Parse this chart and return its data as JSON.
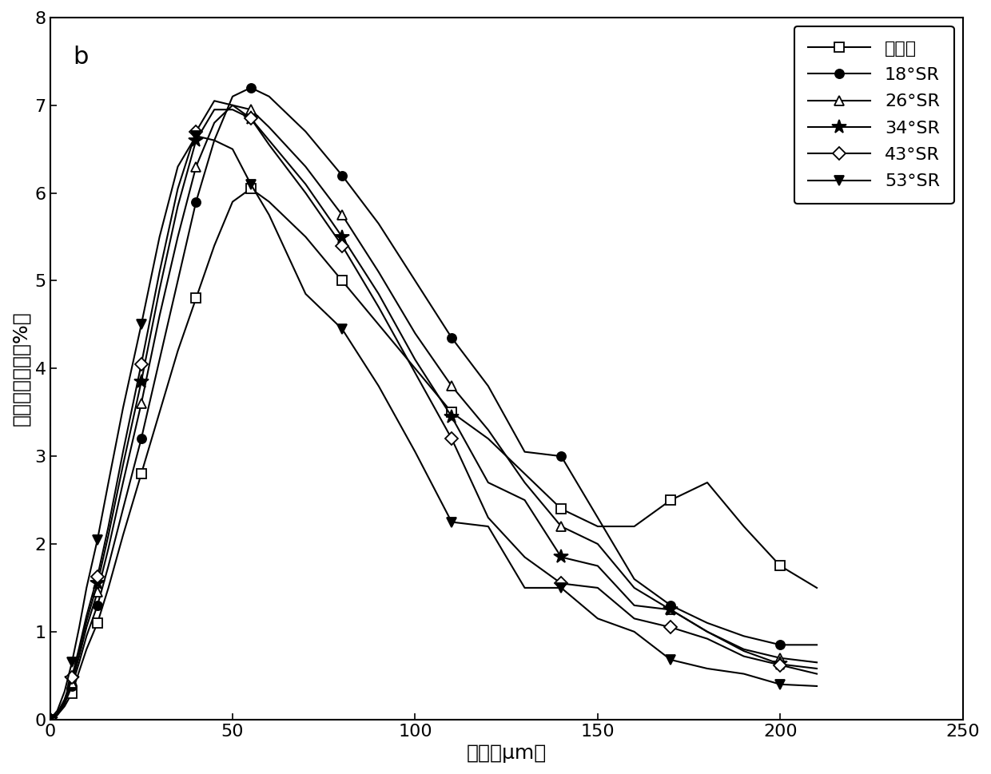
{
  "title_label": "b",
  "xlabel": "粒径（μm）",
  "ylabel": "区间百分含量（%）",
  "xlim": [
    0,
    250
  ],
  "ylim": [
    0,
    8
  ],
  "xticks": [
    0,
    50,
    100,
    150,
    200,
    250
  ],
  "yticks": [
    0,
    1,
    2,
    3,
    4,
    5,
    6,
    7,
    8
  ],
  "series": [
    {
      "label": "未打浆",
      "marker": "s",
      "marker_fill": "white",
      "marker_edge": "black",
      "color": "black",
      "x": [
        0,
        2,
        4,
        6,
        8,
        10,
        13,
        16,
        20,
        25,
        30,
        35,
        40,
        45,
        50,
        55,
        60,
        70,
        80,
        90,
        100,
        110,
        120,
        130,
        140,
        150,
        160,
        170,
        180,
        190,
        200,
        210
      ],
      "y": [
        0.0,
        0.05,
        0.15,
        0.3,
        0.55,
        0.8,
        1.1,
        1.5,
        2.1,
        2.8,
        3.5,
        4.2,
        4.8,
        5.4,
        5.9,
        6.05,
        5.9,
        5.5,
        5.0,
        4.5,
        4.0,
        3.5,
        3.2,
        2.8,
        2.4,
        2.2,
        2.2,
        2.5,
        2.7,
        2.2,
        1.75,
        1.5
      ]
    },
    {
      "label": "18°SR",
      "marker": "o",
      "marker_fill": "black",
      "marker_edge": "black",
      "color": "black",
      "x": [
        0,
        2,
        4,
        6,
        8,
        10,
        13,
        16,
        20,
        25,
        30,
        35,
        40,
        45,
        50,
        55,
        60,
        70,
        80,
        90,
        100,
        110,
        120,
        130,
        140,
        150,
        160,
        170,
        180,
        190,
        200,
        210
      ],
      "y": [
        0.0,
        0.05,
        0.18,
        0.38,
        0.65,
        0.95,
        1.3,
        1.75,
        2.4,
        3.2,
        4.1,
        5.0,
        5.9,
        6.6,
        7.1,
        7.2,
        7.1,
        6.7,
        6.2,
        5.65,
        5.0,
        4.35,
        3.8,
        3.05,
        3.0,
        2.3,
        1.6,
        1.3,
        1.1,
        0.95,
        0.85,
        0.85
      ]
    },
    {
      "label": "26°SR",
      "marker": "^",
      "marker_fill": "white",
      "marker_edge": "black",
      "color": "black",
      "x": [
        0,
        2,
        4,
        6,
        8,
        10,
        13,
        16,
        20,
        25,
        30,
        35,
        40,
        45,
        50,
        55,
        60,
        70,
        80,
        90,
        100,
        110,
        120,
        130,
        140,
        150,
        160,
        170,
        180,
        190,
        200,
        210
      ],
      "y": [
        0.0,
        0.06,
        0.2,
        0.42,
        0.72,
        1.05,
        1.45,
        1.95,
        2.7,
        3.6,
        4.6,
        5.5,
        6.3,
        6.8,
        7.0,
        6.95,
        6.75,
        6.3,
        5.75,
        5.1,
        4.4,
        3.8,
        3.3,
        2.7,
        2.2,
        2.0,
        1.5,
        1.25,
        1.0,
        0.8,
        0.7,
        0.65
      ]
    },
    {
      "label": "34°SR",
      "marker": "*",
      "marker_fill": "black",
      "marker_edge": "black",
      "color": "black",
      "x": [
        0,
        2,
        4,
        6,
        8,
        10,
        13,
        16,
        20,
        25,
        30,
        35,
        40,
        45,
        50,
        55,
        60,
        70,
        80,
        90,
        100,
        110,
        120,
        130,
        140,
        150,
        160,
        170,
        180,
        190,
        200,
        210
      ],
      "y": [
        0.0,
        0.07,
        0.22,
        0.46,
        0.78,
        1.12,
        1.55,
        2.1,
        2.9,
        3.85,
        4.9,
        5.85,
        6.6,
        6.95,
        6.95,
        6.85,
        6.6,
        6.1,
        5.5,
        4.85,
        4.1,
        3.45,
        2.7,
        2.5,
        1.85,
        1.75,
        1.3,
        1.25,
        1.0,
        0.78,
        0.63,
        0.58
      ]
    },
    {
      "label": "43°SR",
      "marker": "D",
      "marker_fill": "white",
      "marker_edge": "black",
      "color": "black",
      "x": [
        0,
        2,
        4,
        6,
        8,
        10,
        13,
        16,
        20,
        25,
        30,
        35,
        40,
        45,
        50,
        55,
        60,
        70,
        80,
        90,
        100,
        110,
        120,
        130,
        140,
        150,
        160,
        170,
        180,
        190,
        200,
        210
      ],
      "y": [
        0.0,
        0.07,
        0.23,
        0.48,
        0.82,
        1.18,
        1.63,
        2.2,
        3.05,
        4.05,
        5.1,
        6.05,
        6.7,
        7.05,
        7.0,
        6.85,
        6.55,
        6.0,
        5.4,
        4.7,
        3.95,
        3.2,
        2.3,
        1.85,
        1.55,
        1.5,
        1.15,
        1.05,
        0.92,
        0.72,
        0.62,
        0.52
      ]
    },
    {
      "label": "53°SR",
      "marker": "v",
      "marker_fill": "black",
      "marker_edge": "black",
      "color": "black",
      "x": [
        0,
        2,
        4,
        6,
        8,
        10,
        13,
        16,
        20,
        25,
        30,
        35,
        40,
        45,
        50,
        55,
        60,
        70,
        80,
        90,
        100,
        110,
        120,
        130,
        140,
        150,
        160,
        170,
        180,
        190,
        200,
        210
      ],
      "y": [
        0.0,
        0.1,
        0.32,
        0.65,
        1.05,
        1.5,
        2.05,
        2.7,
        3.55,
        4.5,
        5.5,
        6.3,
        6.65,
        6.6,
        6.5,
        6.1,
        5.75,
        4.85,
        4.45,
        3.8,
        3.05,
        2.25,
        2.2,
        1.5,
        1.5,
        1.15,
        1.0,
        0.68,
        0.58,
        0.52,
        0.4,
        0.38
      ]
    }
  ],
  "background_color": "#ffffff",
  "line_color": "black",
  "line_width": 1.5,
  "marker_size": 8,
  "marker_size_star": 13,
  "font_size_label": 18,
  "font_size_tick": 16,
  "font_size_legend": 16,
  "font_size_annotation": 22
}
